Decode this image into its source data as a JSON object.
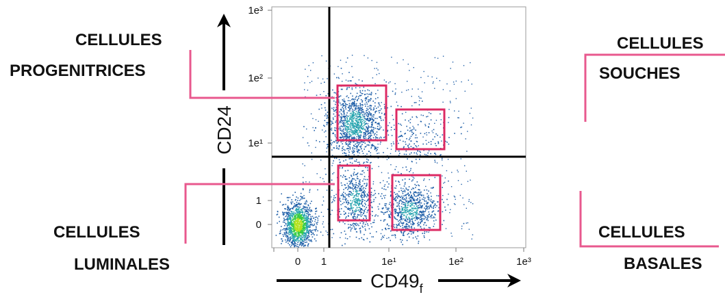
{
  "chart_data": {
    "type": "scatter",
    "subtype": "flow-cytometry-density-dot-plot",
    "xlabel": "CD49",
    "xlabel_subscript": "f",
    "ylabel": "CD24",
    "x_ticks": [
      "0",
      "1",
      "1e¹",
      "1e²",
      "1e³"
    ],
    "y_ticks": [
      "0",
      "1",
      "1e¹",
      "1e²",
      "1e³"
    ],
    "x_axis_scale": "log-like (0, 1, 10, 100, 1000)",
    "y_axis_scale": "log-like (0, 1, 10, 100, 1000)",
    "populations": [
      {
        "id": "progenitrices",
        "label_line1": "CELLULES",
        "label_line2": "PROGENITRICES",
        "x_center": 3,
        "y_center": 20,
        "density": "high",
        "gate": true
      },
      {
        "id": "souches",
        "label_line1": "CELLULES",
        "label_line2": "SOUCHES",
        "x_center": 25,
        "y_center": 12,
        "density": "low",
        "gate": true
      },
      {
        "id": "luminales",
        "label_line1": "CELLULES",
        "label_line2": "LUMINALES",
        "x_center": 3,
        "y_center": 1,
        "density": "medium",
        "gate": true
      },
      {
        "id": "basales",
        "label_line1": "CELLULES",
        "label_line2": "BASALES",
        "x_center": 20,
        "y_center": 0.6,
        "density": "medium",
        "gate": true
      },
      {
        "id": "negative",
        "x_center": 0,
        "y_center": 0,
        "density": "very-high",
        "gate": false
      }
    ],
    "quadrant_lines": {
      "x": 1.2,
      "y": 5
    },
    "colors": {
      "gate": "#dc2a63",
      "connector": "#e8588e",
      "dot_low": "#1f5fa8",
      "dot_mid": "#2aa6b0",
      "dot_high": "#37cc44",
      "dot_peak": "#b4e21f",
      "axis": "#000000"
    }
  }
}
